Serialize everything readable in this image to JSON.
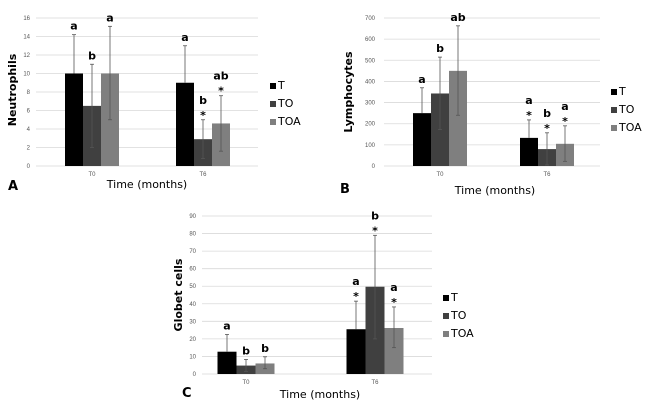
{
  "colors": {
    "T": "#000000",
    "TO": "#404040",
    "TOA": "#7f7f7f"
  },
  "chart_data": [
    {
      "panel": "A",
      "type": "bar",
      "xlabel": "Time (months)",
      "ylabel": "Neutrophils",
      "ylim": [
        0,
        16
      ],
      "yticks": [
        0,
        2,
        4,
        6,
        8,
        10,
        12,
        14,
        16
      ],
      "categories": [
        "T0",
        "T6"
      ],
      "legend": "right",
      "grid": true,
      "series": [
        {
          "name": "T",
          "values": [
            10,
            9
          ],
          "err_upper": [
            14.2,
            13
          ],
          "err_lower": [
            null,
            null
          ],
          "letters": [
            "a",
            "a"
          ],
          "stars": [
            false,
            false
          ]
        },
        {
          "name": "TO",
          "values": [
            6.5,
            2.9
          ],
          "err_upper": [
            11,
            5
          ],
          "err_lower": [
            2,
            0.8
          ],
          "letters": [
            "b",
            "b"
          ],
          "stars": [
            false,
            true
          ]
        },
        {
          "name": "TOA",
          "values": [
            10,
            4.6
          ],
          "err_upper": [
            15.1,
            7.6
          ],
          "err_lower": [
            5,
            1.6
          ],
          "letters": [
            "a",
            "ab"
          ],
          "stars": [
            false,
            true
          ]
        }
      ]
    },
    {
      "panel": "B",
      "type": "bar",
      "xlabel": "Time (months)",
      "ylabel": "Lymphocytes",
      "ylim": [
        0,
        700
      ],
      "yticks": [
        0,
        100,
        200,
        300,
        400,
        500,
        600,
        700
      ],
      "categories": [
        "T0",
        "T6"
      ],
      "legend": "right",
      "grid": true,
      "series": [
        {
          "name": "T",
          "values": [
            250,
            133
          ],
          "err_upper": [
            370,
            218
          ],
          "err_lower": [
            null,
            null
          ],
          "letters": [
            "a",
            "a"
          ],
          "stars": [
            false,
            true
          ]
        },
        {
          "name": "TO",
          "values": [
            343,
            80
          ],
          "err_upper": [
            515,
            157
          ],
          "err_lower": [
            172,
            5
          ],
          "letters": [
            "b",
            "b"
          ],
          "stars": [
            false,
            true
          ]
        },
        {
          "name": "TOA",
          "values": [
            450,
            105
          ],
          "err_upper": [
            663,
            190
          ],
          "err_lower": [
            240,
            22
          ],
          "letters": [
            "ab",
            "a"
          ],
          "stars": [
            false,
            true
          ]
        }
      ]
    },
    {
      "panel": "C",
      "type": "bar",
      "xlabel": "Time (months)",
      "ylabel": "Globet cells",
      "ylim": [
        0,
        90
      ],
      "yticks": [
        0,
        10,
        20,
        30,
        40,
        50,
        60,
        70,
        80,
        90
      ],
      "categories": [
        "T0",
        "T6"
      ],
      "legend": "right",
      "grid": true,
      "series": [
        {
          "name": "T",
          "values": [
            12.7,
            25.5
          ],
          "err_upper": [
            22.5,
            41.5
          ],
          "err_lower": [
            null,
            null
          ],
          "letters": [
            "a",
            "a"
          ],
          "stars": [
            false,
            true
          ]
        },
        {
          "name": "TO",
          "values": [
            4.8,
            49.7
          ],
          "err_upper": [
            8.3,
            79
          ],
          "err_lower": [
            1.5,
            20
          ],
          "letters": [
            "b",
            "b"
          ],
          "stars": [
            false,
            true
          ]
        },
        {
          "name": "TOA",
          "values": [
            6,
            26.2
          ],
          "err_upper": [
            9.8,
            38.2
          ],
          "err_lower": [
            3,
            15
          ],
          "letters": [
            "b",
            "a"
          ],
          "stars": [
            false,
            true
          ]
        }
      ]
    }
  ]
}
